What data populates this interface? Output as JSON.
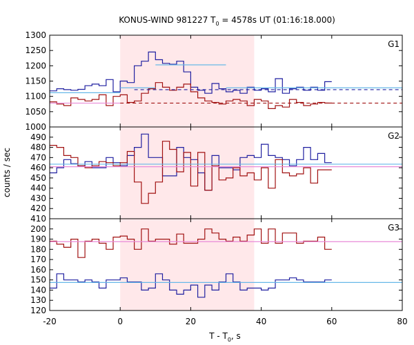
{
  "chart_data": {
    "type": "line",
    "title": "KONUS-WIND 981227 T",
    "title_sub": "0",
    "title_rest": " = 4578s UT (01:16:18.000)",
    "xlabel": "T - T",
    "xlabel_sub": "0",
    "xlabel_rest": ", s",
    "ylabel": "counts / sec",
    "xlim": [
      -20,
      80
    ],
    "x_ticks": [
      "-20",
      "0",
      "20",
      "40",
      "60",
      "80"
    ],
    "shaded_interval": [
      0,
      38
    ],
    "colors": {
      "blue": "#1f1fa0",
      "red": "#a01010",
      "light_blue": "#66b8e8",
      "pink": "#e88ad8",
      "shade": "#ffe8ea"
    },
    "bin_start": -20,
    "bin_width": 2,
    "panels": [
      {
        "label": "G1",
        "ylim": [
          1000,
          1300
        ],
        "y_ticks": [
          "1000",
          "1050",
          "1100",
          "1150",
          "1200",
          "1250",
          "1300"
        ],
        "series": [
          {
            "color": "blue",
            "values": [
              1118,
              1125,
              1122,
              1120,
              1123,
              1135,
              1140,
              1135,
              1155,
              1115,
              1150,
              1145,
              1200,
              1215,
              1245,
              1220,
              1208,
              1205,
              1215,
              1180,
              1130,
              1120,
              1110,
              1142,
              1125,
              1115,
              1120,
              1110,
              1130,
              1120,
              1125,
              1115,
              1158,
              1110,
              1125,
              1130,
              1120,
              1130,
              1120,
              1148
            ]
          },
          {
            "color": "red",
            "values": [
              1082,
              1075,
              1070,
              1095,
              1090,
              1085,
              1090,
              1105,
              1070,
              1100,
              1105,
              1080,
              1085,
              1110,
              1125,
              1145,
              1130,
              1120,
              1130,
              1140,
              1115,
              1095,
              1085,
              1080,
              1075,
              1085,
              1090,
              1085,
              1070,
              1090,
              1085,
              1060,
              1070,
              1065,
              1090,
              1080,
              1070,
              1075,
              1080,
              1078
            ]
          },
          {
            "color": "light_blue",
            "style": "solid",
            "segments": [
              [
                -20,
                1112,
                0
              ],
              [
                0,
                1128,
                10
              ],
              [
                10,
                1203,
                30
              ],
              [
                30,
                1128,
                80
              ]
            ]
          },
          {
            "color": "blue",
            "style": "dashed",
            "segments": [
              [
                4,
                1122,
                80
              ]
            ]
          },
          {
            "color": "pink",
            "style": "solid",
            "segments": [
              [
                -20,
                1078,
                0
              ]
            ]
          },
          {
            "color": "red",
            "style": "dashed",
            "segments": [
              [
                0,
                1078,
                80
              ]
            ]
          }
        ]
      },
      {
        "label": "G2",
        "ylim": [
          410,
          500
        ],
        "y_ticks": [
          "410",
          "420",
          "430",
          "440",
          "450",
          "460",
          "470",
          "480",
          "490"
        ],
        "series": [
          {
            "color": "blue",
            "values": [
              455,
              460,
              468,
              464,
              462,
              466,
              460,
              460,
              470,
              465,
              462,
              472,
              480,
              493,
              470,
              470,
              452,
              452,
              480,
              470,
              468,
              455,
              438,
              472,
              460,
              460,
              458,
              470,
              472,
              470,
              483,
              472,
              470,
              468,
              462,
              468,
              480,
              468,
              474,
              465
            ]
          },
          {
            "color": "red",
            "values": [
              482,
              480,
              472,
              470,
              462,
              460,
              462,
              466,
              465,
              462,
              465,
              476,
              446,
              425,
              435,
              446,
              486,
              478,
              456,
              475,
              442,
              475,
              438,
              462,
              448,
              450,
              460,
              452,
              455,
              448,
              460,
              440,
              468,
              455,
              452,
              454,
              460,
              445,
              458,
              458
            ]
          },
          {
            "color": "light_blue",
            "style": "solid",
            "segments": [
              [
                -20,
                463.5,
                80
              ]
            ]
          },
          {
            "color": "pink",
            "style": "solid",
            "segments": [
              [
                -20,
                461,
                80
              ]
            ]
          }
        ]
      },
      {
        "label": "G3",
        "ylim": [
          120,
          210
        ],
        "y_ticks": [
          "120",
          "130",
          "140",
          "150",
          "160",
          "170",
          "180",
          "190",
          "200"
        ],
        "series": [
          {
            "color": "blue",
            "values": [
              142,
              156,
              150,
              150,
              148,
              150,
              148,
              142,
              150,
              150,
              152,
              148,
              148,
              140,
              142,
              156,
              150,
              140,
              136,
              140,
              145,
              133,
              145,
              140,
              148,
              156,
              148,
              140,
              142,
              142,
              140,
              142,
              150,
              150,
              152,
              150,
              148,
              148,
              148,
              150
            ]
          },
          {
            "color": "red",
            "values": [
              188,
              185,
              182,
              190,
              172,
              188,
              190,
              186,
              180,
              192,
              193,
              190,
              180,
              200,
              188,
              190,
              190,
              185,
              195,
              186,
              186,
              190,
              200,
              196,
              190,
              188,
              192,
              188,
              194,
              200,
              186,
              200,
              186,
              196,
              196,
              186,
              188,
              188,
              192,
              180
            ]
          },
          {
            "color": "light_blue",
            "style": "solid",
            "segments": [
              [
                -20,
                147.5,
                80
              ]
            ]
          },
          {
            "color": "pink",
            "style": "solid",
            "segments": [
              [
                -20,
                187.5,
                80
              ]
            ]
          }
        ]
      }
    ]
  }
}
